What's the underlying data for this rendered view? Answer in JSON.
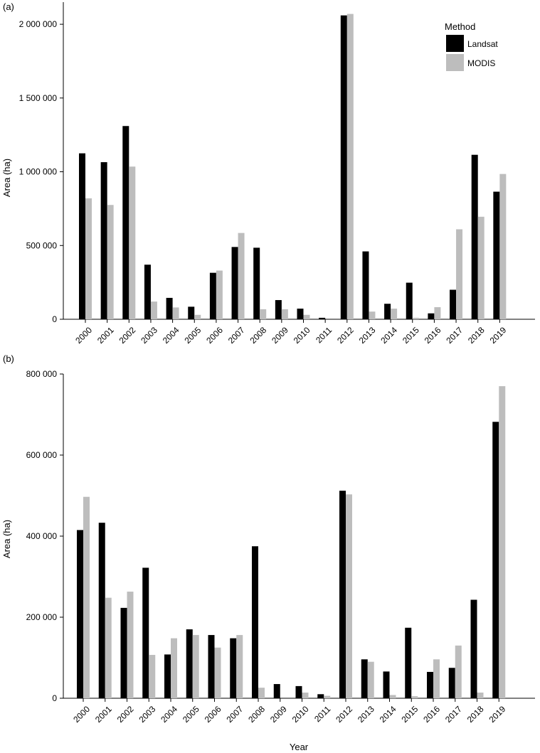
{
  "chart_data": [
    {
      "type": "bar",
      "panel_label": "(a)",
      "ylabel": "Area (ha)",
      "xlabel": "",
      "ylim": [
        0,
        2150000
      ],
      "yticks": [
        0,
        500000,
        1000000,
        1500000,
        2000000
      ],
      "ytick_labels": [
        "0",
        "500 000",
        "1 000 000",
        "1 500 000",
        "2 000 000"
      ],
      "categories": [
        "2000",
        "2001",
        "2002",
        "2003",
        "2004",
        "2005",
        "2006",
        "2007",
        "2008",
        "2009",
        "2010",
        "2011",
        "2012",
        "2013",
        "2014",
        "2015",
        "2016",
        "2017",
        "2018",
        "2019"
      ],
      "series": [
        {
          "name": "Landsat",
          "color": "#000000",
          "values": [
            1125000,
            1065000,
            1310000,
            370000,
            145000,
            85000,
            315000,
            490000,
            485000,
            130000,
            72000,
            10000,
            2060000,
            460000,
            105000,
            248000,
            40000,
            200000,
            1115000,
            865000
          ]
        },
        {
          "name": "MODIS",
          "color": "#bdbdbd",
          "values": [
            820000,
            775000,
            1035000,
            120000,
            80000,
            30000,
            330000,
            585000,
            68000,
            68000,
            30000,
            0,
            2070000,
            52000,
            72000,
            10000,
            82000,
            610000,
            695000,
            985000
          ]
        }
      ],
      "legend": {
        "title": "Method",
        "position": "top-right"
      }
    },
    {
      "type": "bar",
      "panel_label": "(b)",
      "ylabel": "Area (ha)",
      "xlabel": "Year",
      "ylim": [
        0,
        800000
      ],
      "yticks": [
        0,
        200000,
        400000,
        600000,
        800000
      ],
      "ytick_labels": [
        "0",
        "200 000",
        "400 000",
        "600 000",
        "800 000"
      ],
      "categories": [
        "2000",
        "2001",
        "2002",
        "2003",
        "2004",
        "2005",
        "2006",
        "2007",
        "2008",
        "2009",
        "2010",
        "2011",
        "2012",
        "2013",
        "2014",
        "2015",
        "2016",
        "2017",
        "2018",
        "2019"
      ],
      "series": [
        {
          "name": "Landsat",
          "color": "#000000",
          "values": [
            415000,
            433000,
            223000,
            322000,
            108000,
            170000,
            156000,
            148000,
            375000,
            35000,
            30000,
            10000,
            512000,
            96000,
            66000,
            174000,
            65000,
            75000,
            243000,
            682000
          ]
        },
        {
          "name": "MODIS",
          "color": "#bdbdbd",
          "values": [
            497000,
            248000,
            263000,
            107000,
            148000,
            156000,
            125000,
            156000,
            26000,
            0,
            14000,
            6000,
            503000,
            90000,
            8000,
            5000,
            96000,
            130000,
            14000,
            770000
          ]
        }
      ]
    }
  ]
}
